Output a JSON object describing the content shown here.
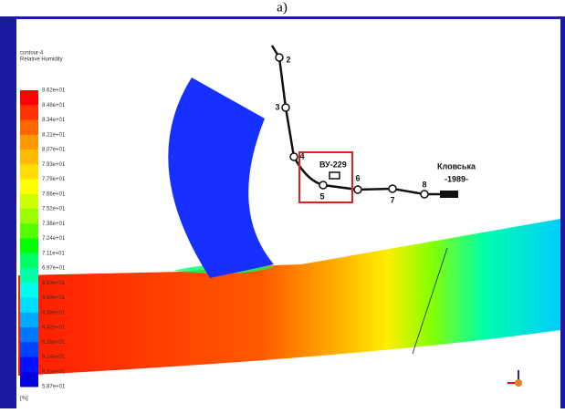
{
  "title": "a)",
  "legend": {
    "title": "contour-4",
    "variable": "Relative Humidity",
    "labels": [
      "8.62e+01",
      "8.48e+01",
      "8.34e+01",
      "8.21e+01",
      "8.07e+01",
      "7.93e+01",
      "7.79e+01",
      "7.66e+01",
      "7.52e+01",
      "7.38e+01",
      "7.24e+01",
      "7.11e+01",
      "6.97e+01",
      "6.83e+01",
      "6.69e+01",
      "6.56e+01",
      "6.42e+01",
      "6.28e+01",
      "6.14e+01",
      "6.01e+01",
      "5.87e+01"
    ],
    "unit": "[%]",
    "colors": [
      "#ff0000",
      "#ff3300",
      "#ff6600",
      "#ff9900",
      "#ffbb00",
      "#ffdd00",
      "#ffff00",
      "#ccff00",
      "#99ff00",
      "#55ff00",
      "#00ff00",
      "#00ff66",
      "#00ffaa",
      "#00ffee",
      "#00ddff",
      "#00aaff",
      "#0077ff",
      "#0044ff",
      "#0011ff",
      "#0000dd"
    ]
  },
  "diagram": {
    "nodes": [
      "2",
      "3",
      "4",
      "5",
      "6",
      "7",
      "8"
    ],
    "station": "ВУ-229",
    "name": "Кловська",
    "year": "-1989-"
  }
}
